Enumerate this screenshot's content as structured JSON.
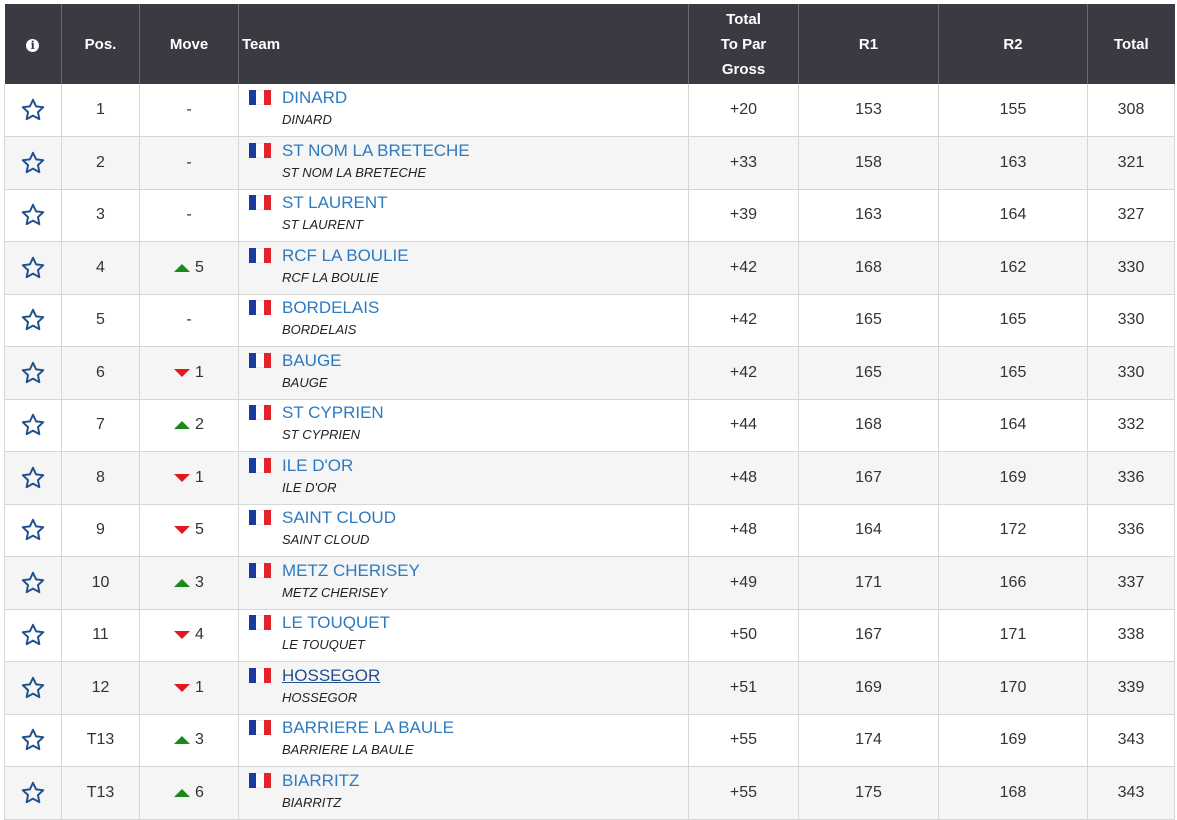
{
  "header": {
    "info_icon": "info-icon",
    "pos": "Pos.",
    "move": "Move",
    "team": "Team",
    "total_to_par_gross_line1": "Total",
    "total_to_par_gross_line2": "To Par",
    "total_to_par_gross_line3": "Gross",
    "r1": "R1",
    "r2": "R2",
    "total": "Total"
  },
  "colors": {
    "header_bg": "#3a3a42",
    "link": "#2d7abf",
    "up": "#1a8a1a",
    "down": "#e0191f",
    "star": "#1f4f8f"
  },
  "rows": [
    {
      "pos": "1",
      "move_dir": "none",
      "move": "-",
      "team": "DINARD",
      "sub": "DINARD",
      "to_par": "+20",
      "r1": "153",
      "r2": "155",
      "total": "308"
    },
    {
      "pos": "2",
      "move_dir": "none",
      "move": "-",
      "team": "ST NOM LA BRETECHE",
      "sub": "ST NOM LA BRETECHE",
      "to_par": "+33",
      "r1": "158",
      "r2": "163",
      "total": "321"
    },
    {
      "pos": "3",
      "move_dir": "none",
      "move": "-",
      "team": "ST LAURENT",
      "sub": "ST LAURENT",
      "to_par": "+39",
      "r1": "163",
      "r2": "164",
      "total": "327"
    },
    {
      "pos": "4",
      "move_dir": "up",
      "move": "5",
      "team": "RCF LA BOULIE",
      "sub": "RCF LA BOULIE",
      "to_par": "+42",
      "r1": "168",
      "r2": "162",
      "total": "330"
    },
    {
      "pos": "5",
      "move_dir": "none",
      "move": "-",
      "team": "BORDELAIS",
      "sub": "BORDELAIS",
      "to_par": "+42",
      "r1": "165",
      "r2": "165",
      "total": "330"
    },
    {
      "pos": "6",
      "move_dir": "down",
      "move": "1",
      "team": "BAUGE",
      "sub": "BAUGE",
      "to_par": "+42",
      "r1": "165",
      "r2": "165",
      "total": "330"
    },
    {
      "pos": "7",
      "move_dir": "up",
      "move": "2",
      "team": "ST CYPRIEN",
      "sub": "ST CYPRIEN",
      "to_par": "+44",
      "r1": "168",
      "r2": "164",
      "total": "332"
    },
    {
      "pos": "8",
      "move_dir": "down",
      "move": "1",
      "team": "ILE D'OR",
      "sub": "ILE D'OR",
      "to_par": "+48",
      "r1": "167",
      "r2": "169",
      "total": "336"
    },
    {
      "pos": "9",
      "move_dir": "down",
      "move": "5",
      "team": "SAINT CLOUD",
      "sub": "SAINT CLOUD",
      "to_par": "+48",
      "r1": "164",
      "r2": "172",
      "total": "336"
    },
    {
      "pos": "10",
      "move_dir": "up",
      "move": "3",
      "team": "METZ CHERISEY",
      "sub": "METZ CHERISEY",
      "to_par": "+49",
      "r1": "171",
      "r2": "166",
      "total": "337"
    },
    {
      "pos": "11",
      "move_dir": "down",
      "move": "4",
      "team": "LE TOUQUET",
      "sub": "LE TOUQUET",
      "to_par": "+50",
      "r1": "167",
      "r2": "171",
      "total": "338"
    },
    {
      "pos": "12",
      "move_dir": "down",
      "move": "1",
      "team": "HOSSEGOR",
      "sub": "HOSSEGOR",
      "to_par": "+51",
      "r1": "169",
      "r2": "170",
      "total": "339",
      "hover": true
    },
    {
      "pos": "T13",
      "move_dir": "up",
      "move": "3",
      "team": "BARRIERE LA BAULE",
      "sub": "BARRIERE LA BAULE",
      "to_par": "+55",
      "r1": "174",
      "r2": "169",
      "total": "343"
    },
    {
      "pos": "T13",
      "move_dir": "up",
      "move": "6",
      "team": "BIARRITZ",
      "sub": "BIARRITZ",
      "to_par": "+55",
      "r1": "175",
      "r2": "168",
      "total": "343"
    }
  ]
}
